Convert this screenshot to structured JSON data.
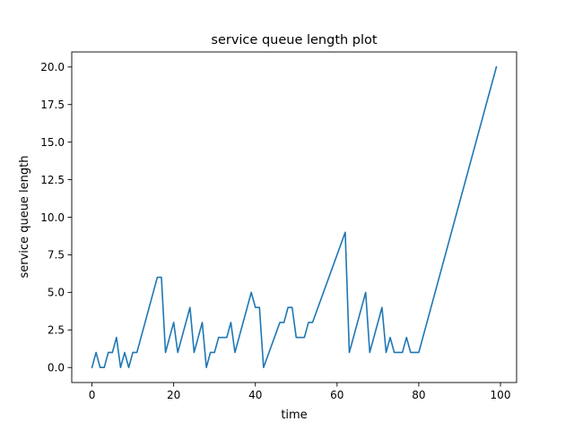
{
  "chart_data": {
    "type": "line",
    "title": "service queue length plot",
    "xlabel": "time",
    "ylabel": "service queue length",
    "xlim": [
      -4.95,
      103.95
    ],
    "ylim": [
      -1,
      21
    ],
    "grid": false,
    "line_color": "#1f77b4",
    "xticks": [
      0,
      20,
      40,
      60,
      80,
      100
    ],
    "xtick_labels": [
      "0",
      "20",
      "40",
      "60",
      "80",
      "100"
    ],
    "yticks": [
      0,
      2.5,
      5,
      7.5,
      10,
      12.5,
      15,
      17.5,
      20
    ],
    "ytick_labels": [
      "0.0",
      "2.5",
      "5.0",
      "7.5",
      "10.0",
      "12.5",
      "15.0",
      "17.5",
      "20.0"
    ],
    "series": [
      {
        "x": [
          0,
          1,
          2,
          3,
          4,
          5,
          6,
          7,
          8,
          9,
          10,
          11,
          16,
          17,
          18,
          20,
          21,
          24,
          25,
          27,
          28,
          29,
          30,
          31,
          33,
          34,
          35,
          39,
          40,
          41,
          42,
          46,
          47,
          48,
          49,
          50,
          51,
          52,
          53,
          54,
          62,
          63,
          67,
          68,
          71,
          72,
          73,
          74,
          76,
          77,
          78,
          80,
          99
        ],
        "y": [
          0,
          1,
          0,
          0,
          1,
          1,
          2,
          0,
          1,
          0,
          1,
          1,
          6,
          6,
          1,
          3,
          1,
          4,
          1,
          3,
          0,
          1,
          1,
          2,
          2,
          3,
          1,
          5,
          4,
          4,
          0,
          3,
          3,
          4,
          4,
          2,
          2,
          2,
          3,
          3,
          9,
          1,
          5,
          1,
          4,
          1,
          2,
          1,
          1,
          2,
          1,
          1,
          20
        ]
      }
    ]
  }
}
